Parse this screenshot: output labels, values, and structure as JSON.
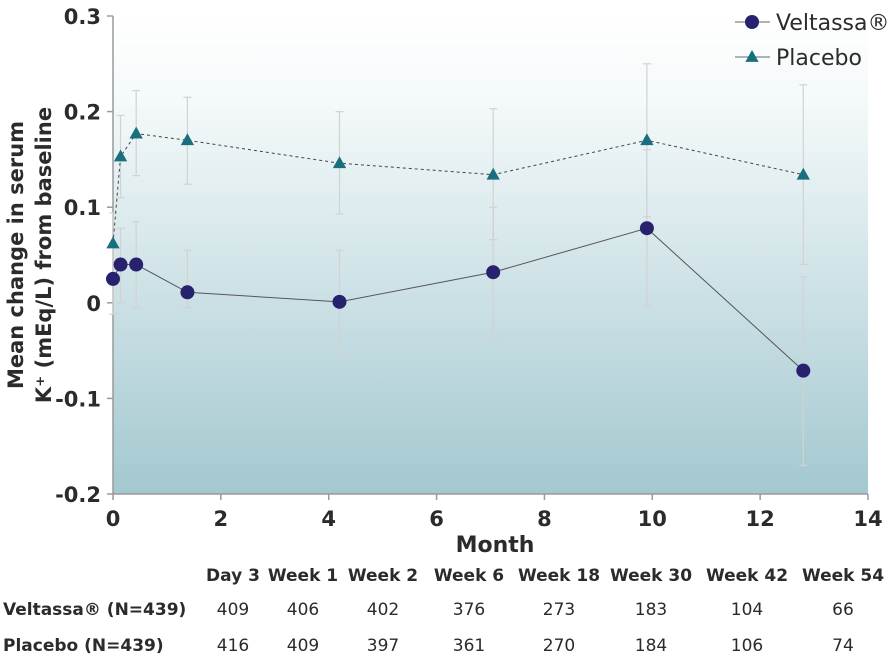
{
  "chart_data": {
    "type": "line",
    "xlabel": "Month",
    "ylabel": [
      "Mean change in serum",
      "K⁺ (mEq/L) from baseline"
    ],
    "xlim": [
      0,
      14
    ],
    "ylim": [
      -0.2,
      0.3
    ],
    "x_ticks": [
      "0",
      "2",
      "4",
      "6",
      "8",
      "10",
      "12",
      "14"
    ],
    "y_ticks": [
      "-0.2",
      "-0.1",
      "0",
      "0.1",
      "0.2",
      "0.3"
    ],
    "legend_position": "top-right",
    "series": [
      {
        "name": "Veltassa®",
        "color": "#27216e",
        "marker": "circle",
        "line_style": "solid",
        "x": [
          0,
          0.14,
          0.43,
          1.38,
          4.2,
          7.05,
          9.9,
          12.8
        ],
        "y": [
          0.025,
          0.04,
          0.04,
          0.011,
          0.001,
          0.032,
          0.078,
          -0.071
        ],
        "err_low": [
          -0.012,
          0.0,
          -0.005,
          -0.005,
          -0.052,
          -0.036,
          -0.003,
          -0.17
        ],
        "err_high": [
          0.06,
          0.078,
          0.085,
          0.055,
          0.055,
          0.1,
          0.16,
          0.027
        ]
      },
      {
        "name": "Placebo",
        "color": "#1a6f7e",
        "marker": "triangle",
        "line_style": "dashed",
        "x": [
          0,
          0.14,
          0.43,
          1.38,
          4.2,
          7.05,
          9.9,
          12.8
        ],
        "y": [
          0.062,
          0.153,
          0.177,
          0.17,
          0.146,
          0.134,
          0.17,
          0.134
        ],
        "err_low": [
          0.03,
          0.11,
          0.133,
          0.124,
          0.093,
          0.066,
          0.09,
          0.04
        ],
        "err_high": [
          0.094,
          0.196,
          0.222,
          0.215,
          0.2,
          0.203,
          0.25,
          0.228
        ]
      }
    ],
    "table": {
      "columns": [
        "Day 3",
        "Week 1",
        "Week 2",
        "Week 6",
        "Week 18",
        "Week 30",
        "Week 42",
        "Week 54"
      ],
      "rows": [
        {
          "label": "Veltassa® (N=439)",
          "values": [
            "409",
            "406",
            "402",
            "376",
            "273",
            "183",
            "104",
            "66"
          ]
        },
        {
          "label": "Placebo (N=439)",
          "values": [
            "416",
            "409",
            "397",
            "361",
            "270",
            "184",
            "106",
            "74"
          ]
        }
      ]
    }
  }
}
